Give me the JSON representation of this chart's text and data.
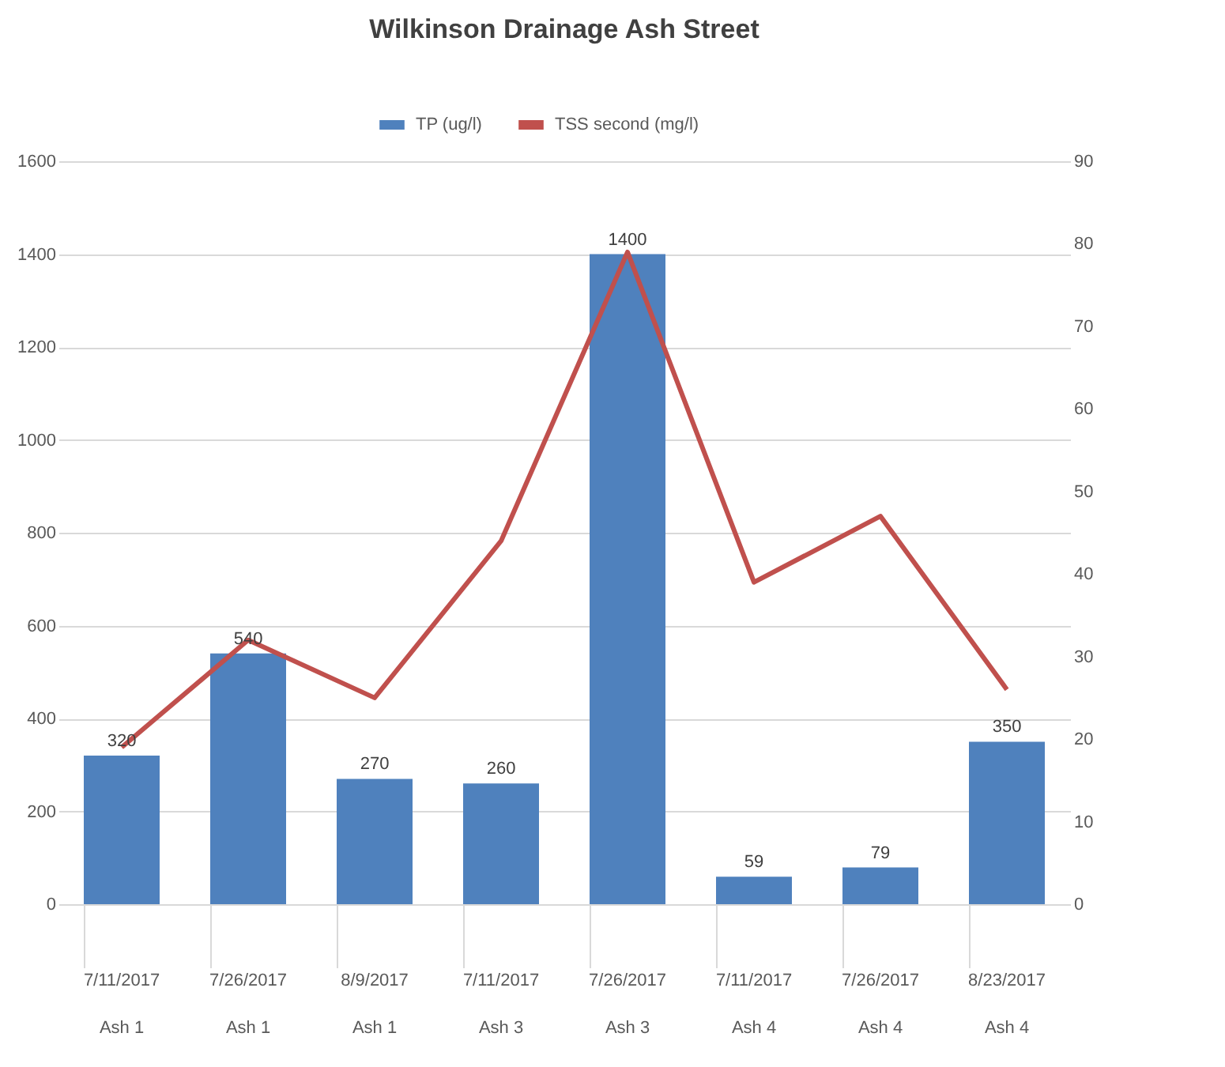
{
  "chart_data": {
    "type": "bar",
    "title": "Wilkinson Drainage Ash Street",
    "categories": [
      "7/11/2017\nAsh 1",
      "7/26/2017\nAsh 1",
      "8/9/2017\nAsh 1",
      "7/11/2017\nAsh 3",
      "7/26/2017\nAsh 3",
      "7/11/2017\nAsh 4",
      "7/26/2017\nAsh 4",
      "8/23/2017\nAsh 4"
    ],
    "series": [
      {
        "name": "TP (ug/l)",
        "color": "#4f81bd",
        "values": [
          320,
          540,
          270,
          260,
          1400,
          59,
          79,
          350
        ],
        "data_labels": true
      },
      {
        "name": "TSS second (mg/l)",
        "type": "line",
        "axis": "y2",
        "color": "#c0504d",
        "values": [
          19,
          32,
          25,
          44,
          79,
          39,
          47,
          26
        ]
      }
    ],
    "ylim": [
      0,
      1600
    ],
    "yticks": [
      0,
      200,
      400,
      600,
      800,
      1000,
      1200,
      1400,
      1600
    ],
    "y2lim": [
      0,
      90
    ],
    "y2ticks": [
      0,
      10,
      20,
      30,
      40,
      50,
      60,
      70,
      80,
      90
    ],
    "grid": "y",
    "legend": "top",
    "marker": "none"
  }
}
